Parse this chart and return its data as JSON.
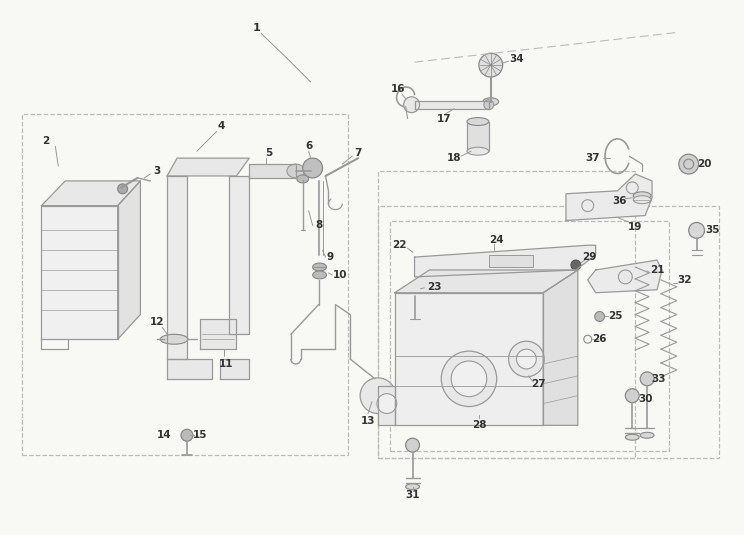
{
  "bg_color": "#f8f8f5",
  "lc": "#999999",
  "dc": "#bbbbbb",
  "pc": "#333333",
  "fig_width": 7.44,
  "fig_height": 5.35,
  "dpi": 100
}
